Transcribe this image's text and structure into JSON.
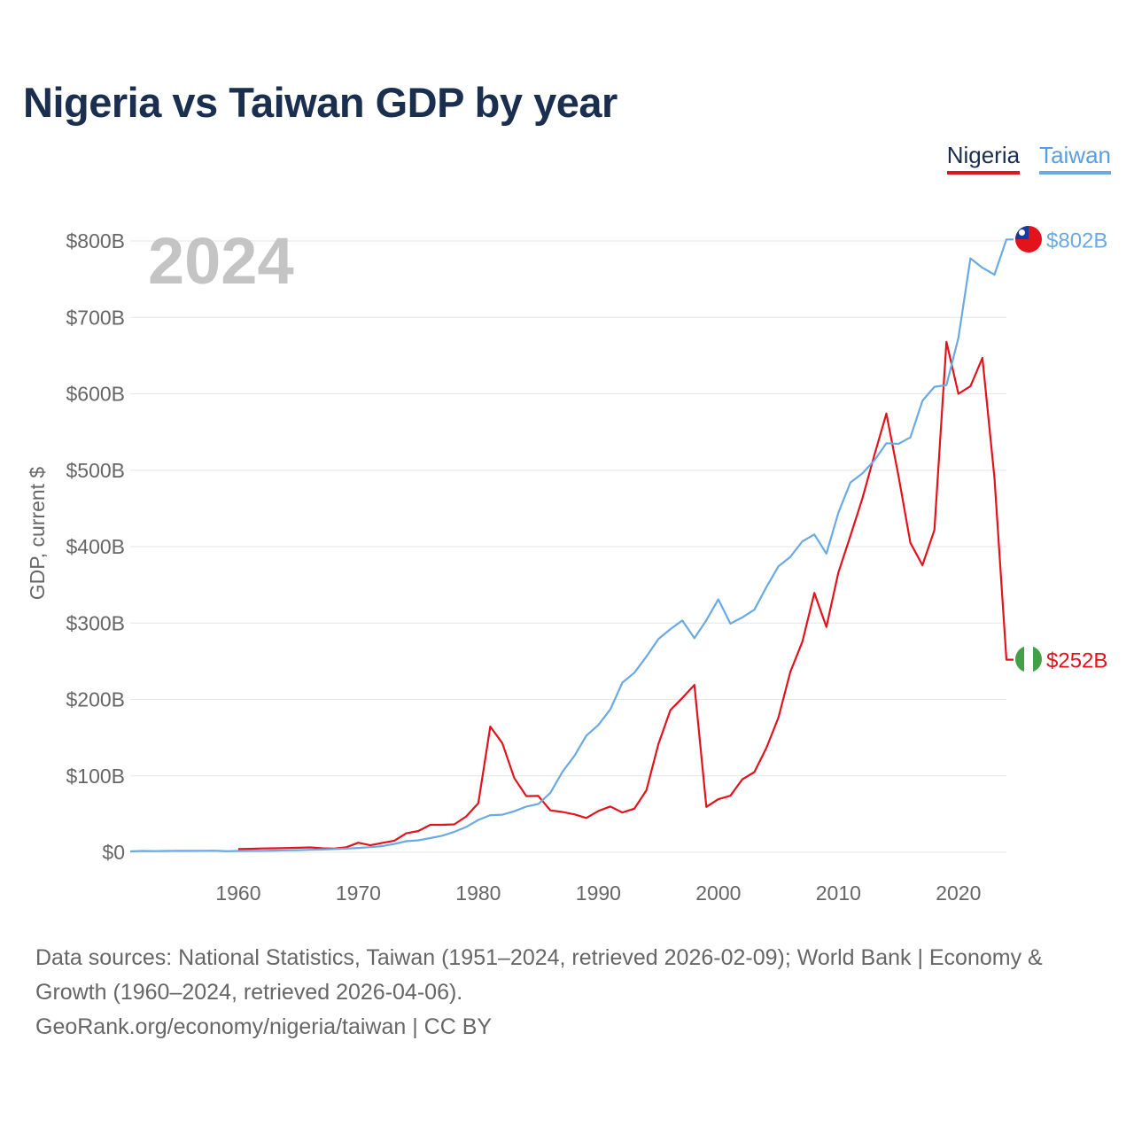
{
  "chart_data": {
    "type": "line",
    "title": "Nigeria vs Taiwan GDP by year",
    "year_label": "2024",
    "ylabel": "GDP, current $",
    "xlabel": "",
    "xlim": [
      1951,
      2024
    ],
    "ylim": [
      0,
      800
    ],
    "y_unit": "billion USD",
    "yticks": [
      0,
      100,
      200,
      300,
      400,
      500,
      600,
      700,
      800
    ],
    "ytick_labels": [
      "$0",
      "$100B",
      "$200B",
      "$300B",
      "$400B",
      "$500B",
      "$600B",
      "$700B",
      "$800B"
    ],
    "xticks": [
      1960,
      1970,
      1980,
      1990,
      2000,
      2010,
      2020
    ],
    "xtick_labels": [
      "1960",
      "1970",
      "1980",
      "1990",
      "2000",
      "2010",
      "2020"
    ],
    "grid": true,
    "legend": "top-right",
    "series": [
      {
        "name": "Nigeria",
        "color": "#e3121b",
        "end_label": "$252B",
        "flag": "nigeria-flag",
        "x": [
          1960,
          1961,
          1962,
          1963,
          1964,
          1965,
          1966,
          1967,
          1968,
          1969,
          1970,
          1971,
          1972,
          1973,
          1974,
          1975,
          1976,
          1977,
          1978,
          1979,
          1980,
          1981,
          1982,
          1983,
          1984,
          1985,
          1986,
          1987,
          1988,
          1989,
          1990,
          1991,
          1992,
          1993,
          1994,
          1995,
          1996,
          1997,
          1998,
          1999,
          2000,
          2001,
          2002,
          2003,
          2004,
          2005,
          2006,
          2007,
          2008,
          2009,
          2010,
          2011,
          2012,
          2013,
          2014,
          2015,
          2016,
          2017,
          2018,
          2019,
          2020,
          2021,
          2022,
          2023,
          2024
        ],
        "values": [
          4.2,
          4.5,
          5,
          5.2,
          5.6,
          5.9,
          6.4,
          5.2,
          4.9,
          6.6,
          12.5,
          9.2,
          12.3,
          15.2,
          24.8,
          27.8,
          36,
          36,
          36.5,
          47,
          64.2,
          164.5,
          142.8,
          97.1,
          73.5,
          73.7,
          54.8,
          52.7,
          49.6,
          44.9,
          54,
          60,
          52.1,
          57,
          81,
          141.3,
          186.1,
          202,
          219,
          59.4,
          69.4,
          74,
          95.4,
          104.9,
          136.4,
          176.1,
          236.1,
          275.6,
          339.5,
          295,
          366,
          414,
          463,
          520,
          574.2,
          493,
          405,
          375.7,
          421.7,
          668,
          600,
          610,
          647,
          490,
          252
        ]
      },
      {
        "name": "Taiwan",
        "color": "#6aaae4",
        "end_label": "$802B",
        "flag": "taiwan-flag",
        "x": [
          1951,
          1952,
          1953,
          1954,
          1955,
          1956,
          1957,
          1958,
          1959,
          1960,
          1961,
          1962,
          1963,
          1964,
          1965,
          1966,
          1967,
          1968,
          1969,
          1970,
          1971,
          1972,
          1973,
          1974,
          1975,
          1976,
          1977,
          1978,
          1979,
          1980,
          1981,
          1982,
          1983,
          1984,
          1985,
          1986,
          1987,
          1988,
          1989,
          1990,
          1991,
          1992,
          1993,
          1994,
          1995,
          1996,
          1997,
          1998,
          1999,
          2000,
          2001,
          2002,
          2003,
          2004,
          2005,
          2006,
          2007,
          2008,
          2009,
          2010,
          2011,
          2012,
          2013,
          2014,
          2015,
          2016,
          2017,
          2018,
          2019,
          2020,
          2021,
          2022,
          2023,
          2024
        ],
        "values": [
          1.2,
          1.7,
          1.5,
          1.7,
          2,
          1.8,
          2,
          2.1,
          1.4,
          1.7,
          1.8,
          1.9,
          2.2,
          2.5,
          2.8,
          3.2,
          3.6,
          4.2,
          4.9,
          5.7,
          6.7,
          8,
          10.9,
          14.5,
          15.7,
          18.6,
          21.7,
          26.8,
          33.2,
          42.3,
          48.6,
          49.2,
          53.7,
          59.8,
          63.1,
          77.8,
          105,
          126,
          152.6,
          166.6,
          187,
          222,
          235,
          256,
          279,
          292,
          303.3,
          280.1,
          303.7,
          331,
          299.3,
          307.4,
          317.4,
          346.9,
          374.1,
          386.5,
          406.9,
          415.9,
          390.8,
          444.3,
          483.9,
          495.8,
          512.9,
          535.3,
          534.5,
          543,
          590.8,
          609.2,
          611.4,
          673.2,
          777.3,
          765,
          756,
          802
        ]
      }
    ]
  },
  "footer": {
    "line1": "Data sources: National Statistics, Taiwan (1951–2024, retrieved 2026-02-09); World Bank | Economy &",
    "line2": "Growth (1960–2024, retrieved 2026-04-06).",
    "line3": "GeoRank.org/economy/nigeria/taiwan | CC BY"
  },
  "colors": {
    "title": "#1a2e4f",
    "axis_text": "#666666",
    "grid": "#e6e6e6",
    "year_watermark": "#c4c4c4"
  }
}
